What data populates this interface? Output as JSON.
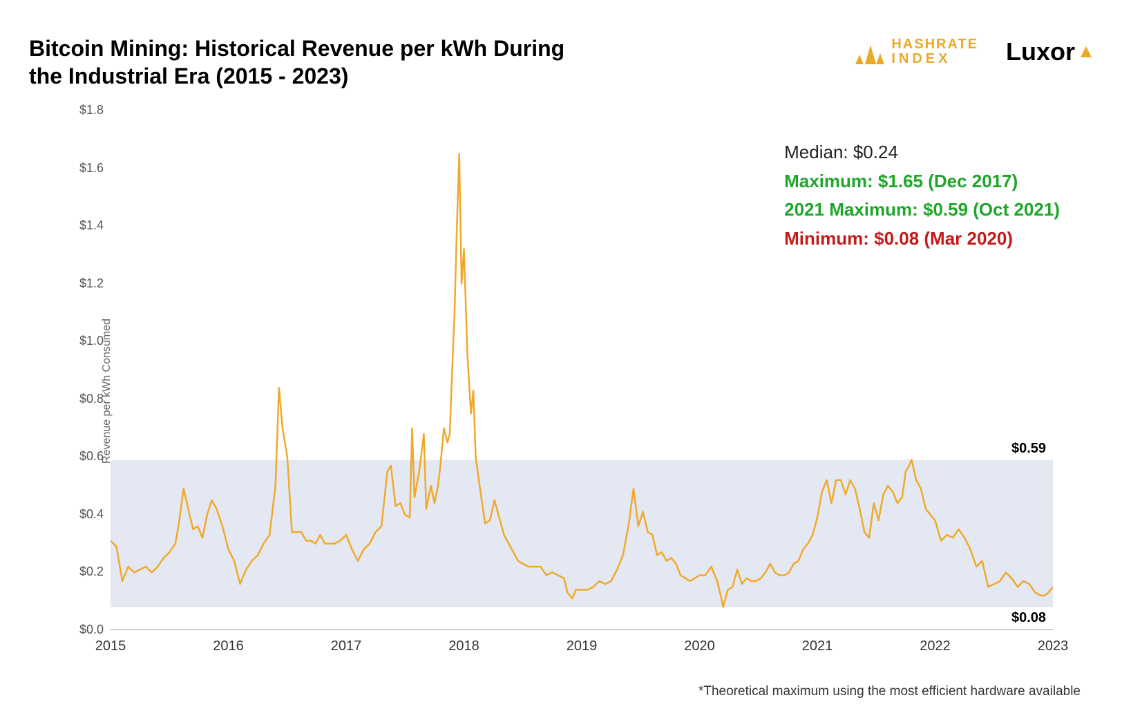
{
  "title": "Bitcoin Mining: Historical Revenue per kWh During the Industrial Era (2015 - 2023)",
  "logos": {
    "hashrate": {
      "line1": "HASHRATE",
      "line2": "INDEX",
      "icon_color": "#ECA928"
    },
    "luxor": {
      "text": "Luxor",
      "accent_color": "#ECA928"
    }
  },
  "stats": {
    "median": {
      "label": "Median: $0.24",
      "color": "#222222"
    },
    "maximum": {
      "label": "Maximum: $1.65 (Dec 2017)",
      "color": "#1FA62A"
    },
    "max2021": {
      "label": "2021 Maximum: $0.59 (Oct 2021)",
      "color": "#1FA62A"
    },
    "minimum": {
      "label": "Minimum: $0.08 (Mar 2020)",
      "color": "#C31B1B"
    }
  },
  "footnote": "*Theoretical maximum using the most efficient hardware available",
  "chart": {
    "type": "line",
    "line_color": "#F0A92A",
    "line_width": 2.5,
    "background_color": "#ffffff",
    "band": {
      "low": 0.08,
      "high": 0.59,
      "fill": "#E4E8F2",
      "opacity": 1.0,
      "label_low": "$0.08",
      "label_high": "$0.59"
    },
    "y_axis": {
      "label": "Revenue per kWh Consumed",
      "min": 0.0,
      "max": 1.8,
      "ticks": [
        0.0,
        0.2,
        0.4,
        0.6,
        0.8,
        1.0,
        1.2,
        1.4,
        1.6,
        1.8
      ],
      "tick_labels": [
        "$0.0",
        "$0.2",
        "$0.4",
        "$0.6",
        "$0.8",
        "$1.0",
        "$1.2",
        "$1.4",
        "$1.6",
        "$1.8"
      ],
      "tick_color": "#555555",
      "label_fontsize": 16
    },
    "x_axis": {
      "min": 2015.0,
      "max": 2023.0,
      "ticks": [
        2015,
        2016,
        2017,
        2018,
        2019,
        2020,
        2021,
        2022,
        2023
      ],
      "tick_labels": [
        "2015",
        "2016",
        "2017",
        "2018",
        "2019",
        "2020",
        "2021",
        "2022",
        "2023"
      ],
      "tick_color": "#333333"
    },
    "series": [
      {
        "x": 2015.0,
        "y": 0.31
      },
      {
        "x": 2015.05,
        "y": 0.29
      },
      {
        "x": 2015.1,
        "y": 0.17
      },
      {
        "x": 2015.15,
        "y": 0.22
      },
      {
        "x": 2015.2,
        "y": 0.2
      },
      {
        "x": 2015.25,
        "y": 0.21
      },
      {
        "x": 2015.3,
        "y": 0.22
      },
      {
        "x": 2015.35,
        "y": 0.2
      },
      {
        "x": 2015.4,
        "y": 0.22
      },
      {
        "x": 2015.45,
        "y": 0.25
      },
      {
        "x": 2015.5,
        "y": 0.27
      },
      {
        "x": 2015.55,
        "y": 0.3
      },
      {
        "x": 2015.58,
        "y": 0.37
      },
      {
        "x": 2015.62,
        "y": 0.49
      },
      {
        "x": 2015.66,
        "y": 0.42
      },
      {
        "x": 2015.7,
        "y": 0.35
      },
      {
        "x": 2015.74,
        "y": 0.36
      },
      {
        "x": 2015.78,
        "y": 0.32
      },
      {
        "x": 2015.82,
        "y": 0.4
      },
      {
        "x": 2015.86,
        "y": 0.45
      },
      {
        "x": 2015.9,
        "y": 0.42
      },
      {
        "x": 2015.95,
        "y": 0.36
      },
      {
        "x": 2016.0,
        "y": 0.28
      },
      {
        "x": 2016.05,
        "y": 0.24
      },
      {
        "x": 2016.1,
        "y": 0.16
      },
      {
        "x": 2016.15,
        "y": 0.21
      },
      {
        "x": 2016.2,
        "y": 0.24
      },
      {
        "x": 2016.25,
        "y": 0.26
      },
      {
        "x": 2016.3,
        "y": 0.3
      },
      {
        "x": 2016.35,
        "y": 0.33
      },
      {
        "x": 2016.4,
        "y": 0.5
      },
      {
        "x": 2016.43,
        "y": 0.84
      },
      {
        "x": 2016.46,
        "y": 0.7
      },
      {
        "x": 2016.5,
        "y": 0.6
      },
      {
        "x": 2016.54,
        "y": 0.34
      },
      {
        "x": 2016.58,
        "y": 0.34
      },
      {
        "x": 2016.62,
        "y": 0.34
      },
      {
        "x": 2016.66,
        "y": 0.31
      },
      {
        "x": 2016.7,
        "y": 0.31
      },
      {
        "x": 2016.74,
        "y": 0.3
      },
      {
        "x": 2016.78,
        "y": 0.33
      },
      {
        "x": 2016.82,
        "y": 0.3
      },
      {
        "x": 2016.86,
        "y": 0.3
      },
      {
        "x": 2016.9,
        "y": 0.3
      },
      {
        "x": 2016.95,
        "y": 0.31
      },
      {
        "x": 2017.0,
        "y": 0.33
      },
      {
        "x": 2017.05,
        "y": 0.28
      },
      {
        "x": 2017.1,
        "y": 0.24
      },
      {
        "x": 2017.15,
        "y": 0.28
      },
      {
        "x": 2017.2,
        "y": 0.3
      },
      {
        "x": 2017.25,
        "y": 0.34
      },
      {
        "x": 2017.3,
        "y": 0.36
      },
      {
        "x": 2017.35,
        "y": 0.55
      },
      {
        "x": 2017.38,
        "y": 0.57
      },
      {
        "x": 2017.42,
        "y": 0.43
      },
      {
        "x": 2017.46,
        "y": 0.44
      },
      {
        "x": 2017.5,
        "y": 0.4
      },
      {
        "x": 2017.54,
        "y": 0.39
      },
      {
        "x": 2017.56,
        "y": 0.7
      },
      {
        "x": 2017.58,
        "y": 0.46
      },
      {
        "x": 2017.62,
        "y": 0.55
      },
      {
        "x": 2017.66,
        "y": 0.68
      },
      {
        "x": 2017.68,
        "y": 0.42
      },
      {
        "x": 2017.72,
        "y": 0.5
      },
      {
        "x": 2017.75,
        "y": 0.44
      },
      {
        "x": 2017.78,
        "y": 0.5
      },
      {
        "x": 2017.8,
        "y": 0.57
      },
      {
        "x": 2017.83,
        "y": 0.7
      },
      {
        "x": 2017.86,
        "y": 0.65
      },
      {
        "x": 2017.88,
        "y": 0.68
      },
      {
        "x": 2017.9,
        "y": 0.9
      },
      {
        "x": 2017.92,
        "y": 1.1
      },
      {
        "x": 2017.94,
        "y": 1.4
      },
      {
        "x": 2017.96,
        "y": 1.65
      },
      {
        "x": 2017.98,
        "y": 1.2
      },
      {
        "x": 2018.0,
        "y": 1.32
      },
      {
        "x": 2018.03,
        "y": 0.95
      },
      {
        "x": 2018.06,
        "y": 0.75
      },
      {
        "x": 2018.08,
        "y": 0.83
      },
      {
        "x": 2018.1,
        "y": 0.6
      },
      {
        "x": 2018.14,
        "y": 0.48
      },
      {
        "x": 2018.18,
        "y": 0.37
      },
      {
        "x": 2018.22,
        "y": 0.38
      },
      {
        "x": 2018.26,
        "y": 0.45
      },
      {
        "x": 2018.3,
        "y": 0.39
      },
      {
        "x": 2018.34,
        "y": 0.33
      },
      {
        "x": 2018.38,
        "y": 0.3
      },
      {
        "x": 2018.42,
        "y": 0.27
      },
      {
        "x": 2018.46,
        "y": 0.24
      },
      {
        "x": 2018.5,
        "y": 0.23
      },
      {
        "x": 2018.55,
        "y": 0.22
      },
      {
        "x": 2018.6,
        "y": 0.22
      },
      {
        "x": 2018.65,
        "y": 0.22
      },
      {
        "x": 2018.7,
        "y": 0.19
      },
      {
        "x": 2018.75,
        "y": 0.2
      },
      {
        "x": 2018.8,
        "y": 0.19
      },
      {
        "x": 2018.85,
        "y": 0.18
      },
      {
        "x": 2018.88,
        "y": 0.13
      },
      {
        "x": 2018.92,
        "y": 0.11
      },
      {
        "x": 2018.95,
        "y": 0.14
      },
      {
        "x": 2019.0,
        "y": 0.14
      },
      {
        "x": 2019.05,
        "y": 0.14
      },
      {
        "x": 2019.1,
        "y": 0.15
      },
      {
        "x": 2019.15,
        "y": 0.17
      },
      {
        "x": 2019.2,
        "y": 0.16
      },
      {
        "x": 2019.25,
        "y": 0.17
      },
      {
        "x": 2019.3,
        "y": 0.21
      },
      {
        "x": 2019.35,
        "y": 0.26
      },
      {
        "x": 2019.4,
        "y": 0.37
      },
      {
        "x": 2019.44,
        "y": 0.49
      },
      {
        "x": 2019.48,
        "y": 0.36
      },
      {
        "x": 2019.52,
        "y": 0.41
      },
      {
        "x": 2019.56,
        "y": 0.34
      },
      {
        "x": 2019.6,
        "y": 0.33
      },
      {
        "x": 2019.64,
        "y": 0.26
      },
      {
        "x": 2019.68,
        "y": 0.27
      },
      {
        "x": 2019.72,
        "y": 0.24
      },
      {
        "x": 2019.76,
        "y": 0.25
      },
      {
        "x": 2019.8,
        "y": 0.23
      },
      {
        "x": 2019.84,
        "y": 0.19
      },
      {
        "x": 2019.88,
        "y": 0.18
      },
      {
        "x": 2019.92,
        "y": 0.17
      },
      {
        "x": 2019.96,
        "y": 0.18
      },
      {
        "x": 2020.0,
        "y": 0.19
      },
      {
        "x": 2020.05,
        "y": 0.19
      },
      {
        "x": 2020.1,
        "y": 0.22
      },
      {
        "x": 2020.15,
        "y": 0.17
      },
      {
        "x": 2020.18,
        "y": 0.12
      },
      {
        "x": 2020.2,
        "y": 0.08
      },
      {
        "x": 2020.24,
        "y": 0.14
      },
      {
        "x": 2020.28,
        "y": 0.15
      },
      {
        "x": 2020.32,
        "y": 0.21
      },
      {
        "x": 2020.36,
        "y": 0.16
      },
      {
        "x": 2020.4,
        "y": 0.18
      },
      {
        "x": 2020.44,
        "y": 0.17
      },
      {
        "x": 2020.48,
        "y": 0.17
      },
      {
        "x": 2020.52,
        "y": 0.18
      },
      {
        "x": 2020.56,
        "y": 0.2
      },
      {
        "x": 2020.6,
        "y": 0.23
      },
      {
        "x": 2020.64,
        "y": 0.2
      },
      {
        "x": 2020.68,
        "y": 0.19
      },
      {
        "x": 2020.72,
        "y": 0.19
      },
      {
        "x": 2020.76,
        "y": 0.2
      },
      {
        "x": 2020.8,
        "y": 0.23
      },
      {
        "x": 2020.84,
        "y": 0.24
      },
      {
        "x": 2020.88,
        "y": 0.28
      },
      {
        "x": 2020.92,
        "y": 0.3
      },
      {
        "x": 2020.96,
        "y": 0.33
      },
      {
        "x": 2021.0,
        "y": 0.39
      },
      {
        "x": 2021.04,
        "y": 0.48
      },
      {
        "x": 2021.08,
        "y": 0.52
      },
      {
        "x": 2021.12,
        "y": 0.44
      },
      {
        "x": 2021.16,
        "y": 0.52
      },
      {
        "x": 2021.2,
        "y": 0.52
      },
      {
        "x": 2021.24,
        "y": 0.47
      },
      {
        "x": 2021.28,
        "y": 0.52
      },
      {
        "x": 2021.32,
        "y": 0.49
      },
      {
        "x": 2021.36,
        "y": 0.42
      },
      {
        "x": 2021.4,
        "y": 0.34
      },
      {
        "x": 2021.44,
        "y": 0.32
      },
      {
        "x": 2021.48,
        "y": 0.44
      },
      {
        "x": 2021.52,
        "y": 0.38
      },
      {
        "x": 2021.56,
        "y": 0.47
      },
      {
        "x": 2021.6,
        "y": 0.5
      },
      {
        "x": 2021.64,
        "y": 0.48
      },
      {
        "x": 2021.68,
        "y": 0.44
      },
      {
        "x": 2021.72,
        "y": 0.46
      },
      {
        "x": 2021.75,
        "y": 0.55
      },
      {
        "x": 2021.78,
        "y": 0.57
      },
      {
        "x": 2021.8,
        "y": 0.59
      },
      {
        "x": 2021.84,
        "y": 0.52
      },
      {
        "x": 2021.88,
        "y": 0.49
      },
      {
        "x": 2021.92,
        "y": 0.42
      },
      {
        "x": 2021.96,
        "y": 0.4
      },
      {
        "x": 2022.0,
        "y": 0.38
      },
      {
        "x": 2022.05,
        "y": 0.31
      },
      {
        "x": 2022.1,
        "y": 0.33
      },
      {
        "x": 2022.15,
        "y": 0.32
      },
      {
        "x": 2022.2,
        "y": 0.35
      },
      {
        "x": 2022.25,
        "y": 0.32
      },
      {
        "x": 2022.3,
        "y": 0.28
      },
      {
        "x": 2022.35,
        "y": 0.22
      },
      {
        "x": 2022.4,
        "y": 0.24
      },
      {
        "x": 2022.45,
        "y": 0.15
      },
      {
        "x": 2022.5,
        "y": 0.16
      },
      {
        "x": 2022.55,
        "y": 0.17
      },
      {
        "x": 2022.6,
        "y": 0.2
      },
      {
        "x": 2022.65,
        "y": 0.18
      },
      {
        "x": 2022.7,
        "y": 0.15
      },
      {
        "x": 2022.75,
        "y": 0.17
      },
      {
        "x": 2022.8,
        "y": 0.16
      },
      {
        "x": 2022.85,
        "y": 0.13
      },
      {
        "x": 2022.9,
        "y": 0.12
      },
      {
        "x": 2022.93,
        "y": 0.12
      },
      {
        "x": 2022.96,
        "y": 0.13
      },
      {
        "x": 2023.0,
        "y": 0.15
      }
    ]
  }
}
